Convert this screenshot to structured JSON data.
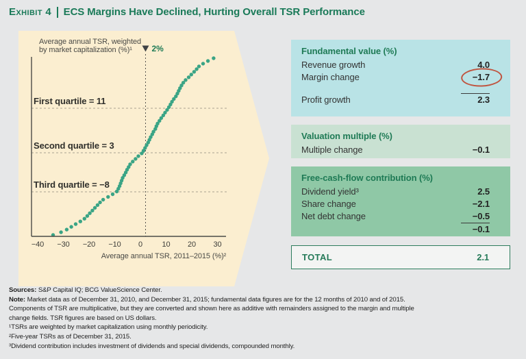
{
  "title": {
    "exhibit": "Exhibit 4",
    "text": "ECS Margins Have Declined, Hurting Overall TSR Performance"
  },
  "colors": {
    "accent_green": "#1a7a58",
    "chart_background_beige": "#fbeed0",
    "dot_teal": "#3aa485",
    "panel_fundamental_bg": "#b9e3e6",
    "panel_valuation_bg": "#c9e1d2",
    "panel_fcf_bg": "#8fc8a6",
    "total_border_green": "#2c7c5c",
    "annotation_circle_red": "#c05540",
    "page_background": "#e6e7e8"
  },
  "chart_data": {
    "type": "scatter",
    "ylabel": "Average annual TSR, weighted by market capitalization (%)¹",
    "ylabel_lines": [
      "Average annual TSR, weighted",
      "by market capitalization (%)¹"
    ],
    "xlabel": "Average annual TSR, 2011–2015 (%)²",
    "x_ticks": [
      -40,
      -30,
      -20,
      -10,
      0,
      10,
      20,
      30
    ],
    "xlim": [
      -40,
      30
    ],
    "grid": "off",
    "legend": "off",
    "weighted_average_marker": {
      "label": "2%",
      "value": 2
    },
    "quartile_annotations": [
      {
        "label": "First quartile = 11",
        "value": 11
      },
      {
        "label": "Second quartile = 3",
        "value": 3
      },
      {
        "label": "Third quartile = −8",
        "value": -8
      }
    ],
    "points_sorted_tsr": [
      -34,
      -30.9,
      -28.7,
      -26.9,
      -25.2,
      -23.4,
      -21.8,
      -20.7,
      -19.7,
      -18.7,
      -17.7,
      -16.7,
      -15.7,
      -14.5,
      -12.6,
      -10.8,
      -9.2,
      -8.6,
      -8.1,
      -7.7,
      -7.3,
      -6.9,
      -6.3,
      -5.7,
      -5.2,
      -4.6,
      -4,
      -3,
      -1.9,
      -0.8,
      0.5,
      1.2,
      1.8,
      2.4,
      3,
      3.5,
      4,
      4.6,
      5.1,
      5.8,
      6.2,
      6.7,
      7.4,
      8.1,
      8.9,
      9.6,
      10.4,
      11.1,
      11.7,
      12.3,
      13,
      13.8,
      14.4,
      14.9,
      15.4,
      16,
      16.7,
      17.6,
      18.8,
      19.8,
      20.9,
      21.9,
      22.8,
      24.4,
      26.3,
      28.5
    ]
  },
  "panels": [
    {
      "header": "Fundamental value (%)",
      "rows": [
        {
          "label": "Revenue growth",
          "value": "4.0"
        },
        {
          "label": "Margin change",
          "value": "−1.7"
        }
      ],
      "subtotal": {
        "label": "Profit growth",
        "value": "2.3"
      }
    },
    {
      "header": "Valuation multiple (%)",
      "rows": [
        {
          "label": "Multiple change",
          "value": "−0.1"
        }
      ]
    },
    {
      "header": "Free-cash-flow contribution (%)",
      "rows": [
        {
          "label": "Dividend yield³",
          "value": "2.5"
        },
        {
          "label": "Share change",
          "value": "−2.1"
        },
        {
          "label": "Net debt change",
          "value": "−0.5"
        }
      ],
      "subtotal": {
        "label": "",
        "value": "−0.1"
      }
    }
  ],
  "total": {
    "label": "TOTAL",
    "value": "2.1"
  },
  "footnotes": {
    "sources_label": "Sources:",
    "sources_text": " S&P Capital IQ; BCG ValueScience Center.",
    "note_label": "Note:",
    "note_text": " Market data as of December 31, 2010, and December 31, 2015; fundamental data figures are for the 12 months of 2010 and of 2015.",
    "note_line2": "Components of TSR are multiplicative, but they are converted and shown here as additive with remainders assigned to the margin and multiple",
    "note_line3": "change fields. TSR figures are based on US dollars.",
    "fn1": "¹TSRs are weighted by market capitalization using monthly periodicity.",
    "fn2": "²Five-year TSRs as of December 31, 2015.",
    "fn3": "³Dividend contribution includes investment of dividends and special dividends, compounded monthly."
  }
}
